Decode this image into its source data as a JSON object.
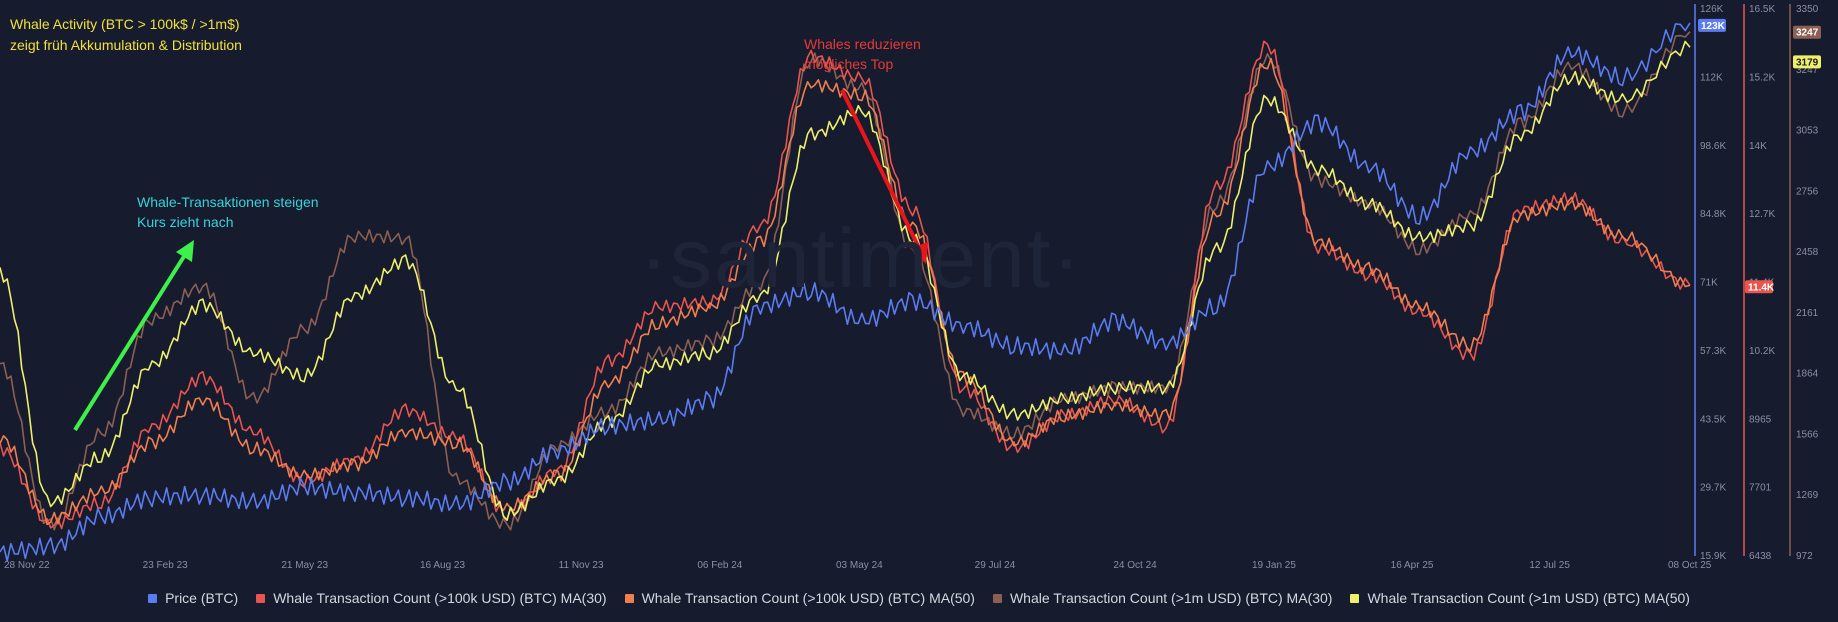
{
  "title_block": {
    "line1": "Whale Activity (BTC > 100k$ / >1m$)",
    "line2": "zeigt früh Akkumulation & Distribution"
  },
  "annotations": {
    "cyan_line1": "Whale-Transaktionen steigen",
    "cyan_line2": "Kurs zieht nach",
    "red_line1": "Whales reduzieren",
    "red_line2": "mögliches Top"
  },
  "watermark": "·santiment·",
  "colors": {
    "background": "#161b2e",
    "price": "#5b7cf0",
    "w100k_ma30": "#e8554e",
    "w100k_ma50": "#f07f4f",
    "w1m_ma30": "#8c5f52",
    "w1m_ma50": "#eef06a",
    "arrow_green": "#3df04a",
    "arrow_red": "#e8161c"
  },
  "legend": [
    {
      "label": "Price (BTC)",
      "color": "#5b7cf0"
    },
    {
      "label": "Whale Transaction Count (>100k USD) (BTC) MA(30)",
      "color": "#e8554e"
    },
    {
      "label": "Whale Transaction Count (>100k USD) (BTC) MA(50)",
      "color": "#f07f4f"
    },
    {
      "label": "Whale Transaction Count (>1m USD) (BTC) MA(30)",
      "color": "#8c5f52"
    },
    {
      "label": "Whale Transaction Count (>1m USD) (BTC) MA(50)",
      "color": "#eef06a"
    }
  ],
  "chart_data": {
    "type": "line",
    "x_labels": [
      "28 Nov 22",
      "23 Feb 23",
      "21 May 23",
      "16 Aug 23",
      "11 Nov 23",
      "06 Feb 24",
      "03 May 24",
      "29 Jul 24",
      "24 Oct 24",
      "19 Jan 25",
      "16 Apr 25",
      "12 Jul 25",
      "08 Oct 25"
    ],
    "axes": {
      "price": {
        "ticks": [
          "126K",
          "112K",
          "98.6K",
          "84.8K",
          "71K",
          "57.3K",
          "43.5K",
          "29.7K",
          "15.9K"
        ],
        "min": 15900,
        "max": 126000,
        "current_badge": "123K",
        "color": "#5b7cf0"
      },
      "w100k": {
        "ticks": [
          "16.5K",
          "15.2K",
          "14K",
          "12.7K",
          "11.4K",
          "10.2K",
          "8965",
          "7701",
          "6438"
        ],
        "min": 6438,
        "max": 16500,
        "current_badge": "11.4K",
        "color": "#e8554e"
      },
      "w1m": {
        "ticks": [
          "3350",
          "3247",
          "3053",
          "2756",
          "2458",
          "2161",
          "1864",
          "1566",
          "1269",
          "972"
        ],
        "min": 972,
        "max": 3350,
        "current_badges": [
          "3247",
          "3179"
        ],
        "color": "#8c5f52"
      }
    },
    "x": [
      0,
      0.03,
      0.06,
      0.09,
      0.12,
      0.15,
      0.18,
      0.21,
      0.24,
      0.27,
      0.3,
      0.33,
      0.36,
      0.39,
      0.42,
      0.45,
      0.48,
      0.51,
      0.54,
      0.57,
      0.6,
      0.63,
      0.66,
      0.69,
      0.72,
      0.75,
      0.78,
      0.81,
      0.84,
      0.87,
      0.9,
      0.93,
      0.96,
      1.0
    ],
    "series": [
      {
        "name": "Price (BTC)",
        "axis": "price",
        "color": "#5b7cf0",
        "values": [
          16500,
          17500,
          23500,
          27500,
          28000,
          26500,
          29500,
          28500,
          27500,
          26000,
          30500,
          37000,
          42000,
          43000,
          47000,
          66000,
          69000,
          63000,
          67000,
          62000,
          58000,
          57000,
          63000,
          58500,
          66000,
          94000,
          103000,
          94000,
          84000,
          97000,
          105000,
          117000,
          112000,
          123000
        ]
      },
      {
        "name": "Whale Transaction Count (>100k USD) (BTC) MA(30)",
        "axis": "w100k",
        "color": "#e8554e",
        "values": [
          8400,
          7000,
          7400,
          8800,
          9700,
          8700,
          7800,
          8200,
          9100,
          8600,
          7200,
          8000,
          10000,
          11000,
          11100,
          12500,
          15600,
          15200,
          12800,
          9500,
          8400,
          9000,
          9300,
          8800,
          13200,
          15800,
          12100,
          11600,
          10900,
          10100,
          12800,
          13000,
          12200,
          11400
        ]
      },
      {
        "name": "Whale Transaction Count (>100k USD) (BTC) MA(50)",
        "axis": "w100k",
        "color": "#f07f4f",
        "values": [
          8600,
          7100,
          7600,
          8500,
          9300,
          8400,
          7900,
          8100,
          8700,
          8500,
          7300,
          7900,
          9600,
          10700,
          11000,
          12200,
          15100,
          14900,
          12500,
          9700,
          8500,
          9000,
          9200,
          9000,
          12700,
          15500,
          12200,
          11700,
          11000,
          10300,
          12700,
          12900,
          12300,
          11400
        ]
      },
      {
        "name": "Whale Transaction Count (>1m USD) (BTC) MA(30)",
        "axis": "w1m",
        "color": "#8c5f52",
        "values": [
          1800,
          1100,
          1500,
          2000,
          2140,
          1650,
          1950,
          2360,
          2350,
          1300,
          1100,
          1450,
          1600,
          1850,
          1900,
          2150,
          3130,
          3000,
          2300,
          1600,
          1500,
          1650,
          1700,
          1700,
          2500,
          3130,
          2600,
          2500,
          2300,
          2450,
          2850,
          3100,
          2900,
          3247
        ]
      },
      {
        "name": "Whale Transaction Count (>1m USD) (BTC) MA(50)",
        "axis": "w1m",
        "color": "#eef06a",
        "values": [
          2200,
          1200,
          1400,
          1800,
          2060,
          1850,
          1750,
          2100,
          2250,
          1700,
          1150,
          1300,
          1550,
          1800,
          1850,
          2100,
          2800,
          2900,
          2350,
          1750,
          1580,
          1650,
          1700,
          1700,
          2300,
          2950,
          2650,
          2500,
          2350,
          2400,
          2800,
          3050,
          2950,
          3179
        ]
      }
    ]
  }
}
